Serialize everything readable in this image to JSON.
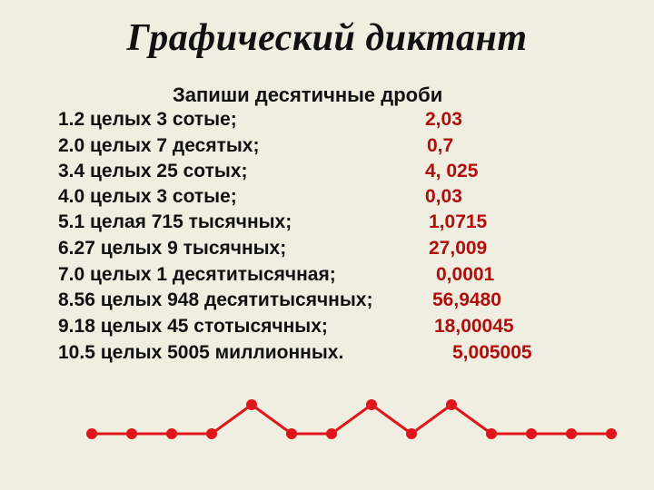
{
  "title": "Графический диктант",
  "subtitle": "Запиши десятичные дроби",
  "items": [
    {
      "q": "1.2 целых 3 сотые;",
      "a": "2,03"
    },
    {
      "q": "2.0 целых 7 десятых;",
      "a": "0,7"
    },
    {
      "q": "3.4 целых 25 сотых;",
      "a": "4, 025"
    },
    {
      "q": "4.0 целых 3 сотые;",
      "a": "0,03"
    },
    {
      "q": "5.1 целая 715 тысячных;",
      "a": "1,0715"
    },
    {
      "q": "6.27 целых 9 тысячных;",
      "a": "27,009"
    },
    {
      "q": "7.0 целых 1 десятитысячная;",
      "a": "0,0001"
    },
    {
      "q": "8.56 целых 948 десятитысячных;",
      "a": "56,9480"
    },
    {
      "q": "9.18 целых 45 стотысячных;",
      "a": "18,00045"
    },
    {
      "q": "10.5 целых 5005 миллионных.",
      "a": "5,005005"
    }
  ],
  "chain_color": "#e0141b",
  "chain_pattern": [
    "low",
    "low",
    "low",
    "low",
    "high",
    "low",
    "low",
    "high",
    "low",
    "high",
    "low",
    "low",
    "low",
    "low"
  ]
}
